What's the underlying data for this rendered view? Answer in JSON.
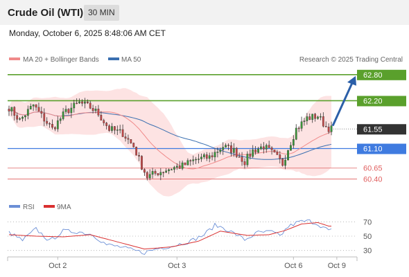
{
  "header": {
    "symbol": "Crude Oil (WTI)",
    "timeframe": "30 MIN",
    "datetime": "Monday, October 6, 2025 8:48:06 AM CET"
  },
  "legend": {
    "ma20_label": "MA 20 + Bollinger Bands",
    "ma50_label": "MA 50",
    "source": "Research © 2025 Trading Central"
  },
  "rsi_legend": {
    "rsi_label": "RSI",
    "ma_label": "9MA"
  },
  "colors": {
    "resistance": "#5aa02c",
    "support": "#3f7be0",
    "level_red": "#e06060",
    "bollinger": "#fde0e0",
    "ma20": "#f08a8a",
    "ma50": "#3a6fb0",
    "candle_up": "#3a9a3a",
    "candle_down": "#c94848",
    "current": "#333333",
    "arrow": "#2b5fa8",
    "rsi": "#6b8fd6",
    "rsi_ma": "#d93030"
  },
  "chart_data": {
    "type": "candlestick",
    "x_ticks": [
      "Oct 2",
      "Oct 3",
      "Oct 6",
      "Oct 9"
    ],
    "ylim": [
      60.12,
      63.02
    ],
    "levels": [
      {
        "value": 62.8,
        "label": "62.80",
        "kind": "resistance"
      },
      {
        "value": 62.2,
        "label": "62.20",
        "kind": "resistance"
      },
      {
        "value": 61.55,
        "label": "61.55",
        "kind": "current"
      },
      {
        "value": 61.1,
        "label": "61.10",
        "kind": "support"
      },
      {
        "value": 60.65,
        "label": "60.65",
        "kind": "red"
      },
      {
        "value": 60.4,
        "label": "60.40",
        "kind": "red"
      }
    ],
    "price_path": [
      [
        0,
        62.05
      ],
      [
        4,
        61.75
      ],
      [
        9,
        62.1
      ],
      [
        12,
        61.85
      ],
      [
        16,
        61.55
      ],
      [
        21,
        61.95
      ],
      [
        26,
        62.15
      ],
      [
        30,
        62.05
      ],
      [
        33,
        61.9
      ],
      [
        37,
        61.55
      ],
      [
        42,
        61.45
      ],
      [
        46,
        61.15
      ],
      [
        49,
        60.7
      ],
      [
        51,
        60.45
      ],
      [
        55,
        60.55
      ],
      [
        60,
        60.65
      ],
      [
        64,
        60.7
      ],
      [
        69,
        60.85
      ],
      [
        74,
        60.9
      ],
      [
        79,
        61.15
      ],
      [
        83,
        61.05
      ],
      [
        87,
        60.8
      ],
      [
        90,
        61.05
      ],
      [
        94,
        61.15
      ],
      [
        98,
        60.95
      ],
      [
        101,
        60.75
      ],
      [
        103,
        61.1
      ],
      [
        106,
        61.55
      ],
      [
        110,
        61.8
      ],
      [
        114,
        61.85
      ],
      [
        117,
        61.6
      ],
      [
        119,
        61.55
      ]
    ],
    "rsi": {
      "ylim": [
        20,
        80
      ],
      "ticks": [
        70,
        50,
        30
      ],
      "path": [
        [
          0,
          55
        ],
        [
          5,
          44
        ],
        [
          10,
          60
        ],
        [
          15,
          43
        ],
        [
          20,
          57
        ],
        [
          26,
          56
        ],
        [
          31,
          52
        ],
        [
          36,
          38
        ],
        [
          41,
          35
        ],
        [
          46,
          30
        ],
        [
          50,
          27
        ],
        [
          55,
          33
        ],
        [
          61,
          37
        ],
        [
          67,
          43
        ],
        [
          72,
          52
        ],
        [
          76,
          65
        ],
        [
          79,
          62
        ],
        [
          84,
          52
        ],
        [
          87,
          45
        ],
        [
          92,
          55
        ],
        [
          97,
          56
        ],
        [
          100,
          50
        ],
        [
          103,
          63
        ],
        [
          107,
          70
        ],
        [
          111,
          71
        ],
        [
          114,
          67
        ],
        [
          118,
          58
        ]
      ],
      "ma_path": [
        [
          0,
          52
        ],
        [
          10,
          50
        ],
        [
          20,
          49
        ],
        [
          30,
          52
        ],
        [
          40,
          42
        ],
        [
          50,
          32
        ],
        [
          60,
          35
        ],
        [
          70,
          43
        ],
        [
          78,
          57
        ],
        [
          88,
          51
        ],
        [
          96,
          52
        ],
        [
          102,
          58
        ],
        [
          108,
          67
        ],
        [
          114,
          69
        ],
        [
          118,
          64
        ]
      ]
    }
  }
}
